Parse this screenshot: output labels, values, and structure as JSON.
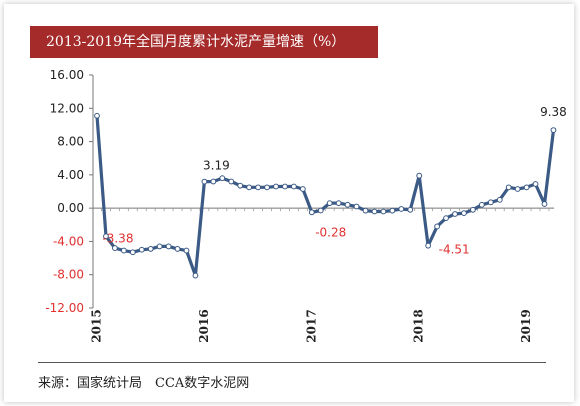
{
  "chart_data": {
    "type": "line",
    "title": "2013-2019年全国月度累计水泥产量增速（%）",
    "xlabel": "",
    "ylabel": "",
    "ylim": [
      -12,
      16
    ],
    "yticks": [
      -12,
      -8,
      -4,
      0,
      4,
      8,
      12,
      16
    ],
    "ytick_labels": [
      "-12.00",
      "-8.00",
      "-4.00",
      "0.00",
      "4.00",
      "8.00",
      "12.00",
      "16.00"
    ],
    "xtick_labels": [
      "2015",
      "2016",
      "2017",
      "2018",
      "2019"
    ],
    "line_color": "#3b5a85",
    "series": [
      {
        "values": [
          11.1,
          -3.38,
          -4.8,
          -5.1,
          -5.3,
          -5.0,
          -4.9,
          -4.6,
          -4.6,
          -4.9,
          -5.1,
          -8.1,
          3.19,
          3.2,
          3.6,
          3.2,
          2.7,
          2.5,
          2.5,
          2.5,
          2.6,
          2.6,
          2.6,
          2.3,
          -0.5,
          -0.28,
          0.6,
          0.6,
          0.4,
          0.2,
          -0.3,
          -0.4,
          -0.4,
          -0.3,
          -0.1,
          -0.2,
          3.9,
          -4.51,
          -2.2,
          -1.2,
          -0.7,
          -0.6,
          -0.2,
          0.4,
          0.7,
          1.0,
          2.5,
          2.3,
          2.5,
          2.9,
          0.5,
          9.38
        ]
      }
    ],
    "annotations": [
      {
        "index": 1,
        "text": "-3.38",
        "color": "#e03030"
      },
      {
        "index": 12,
        "text": "3.19",
        "color": "#222222"
      },
      {
        "index": 25,
        "text": "-0.28",
        "color": "#e03030"
      },
      {
        "index": 37,
        "text": "-4.51",
        "color": "#e03030"
      },
      {
        "index": 51,
        "text": "9.38",
        "color": "#222222"
      }
    ]
  },
  "source_text": "来源：国家统计局　CCA数字水泥网"
}
